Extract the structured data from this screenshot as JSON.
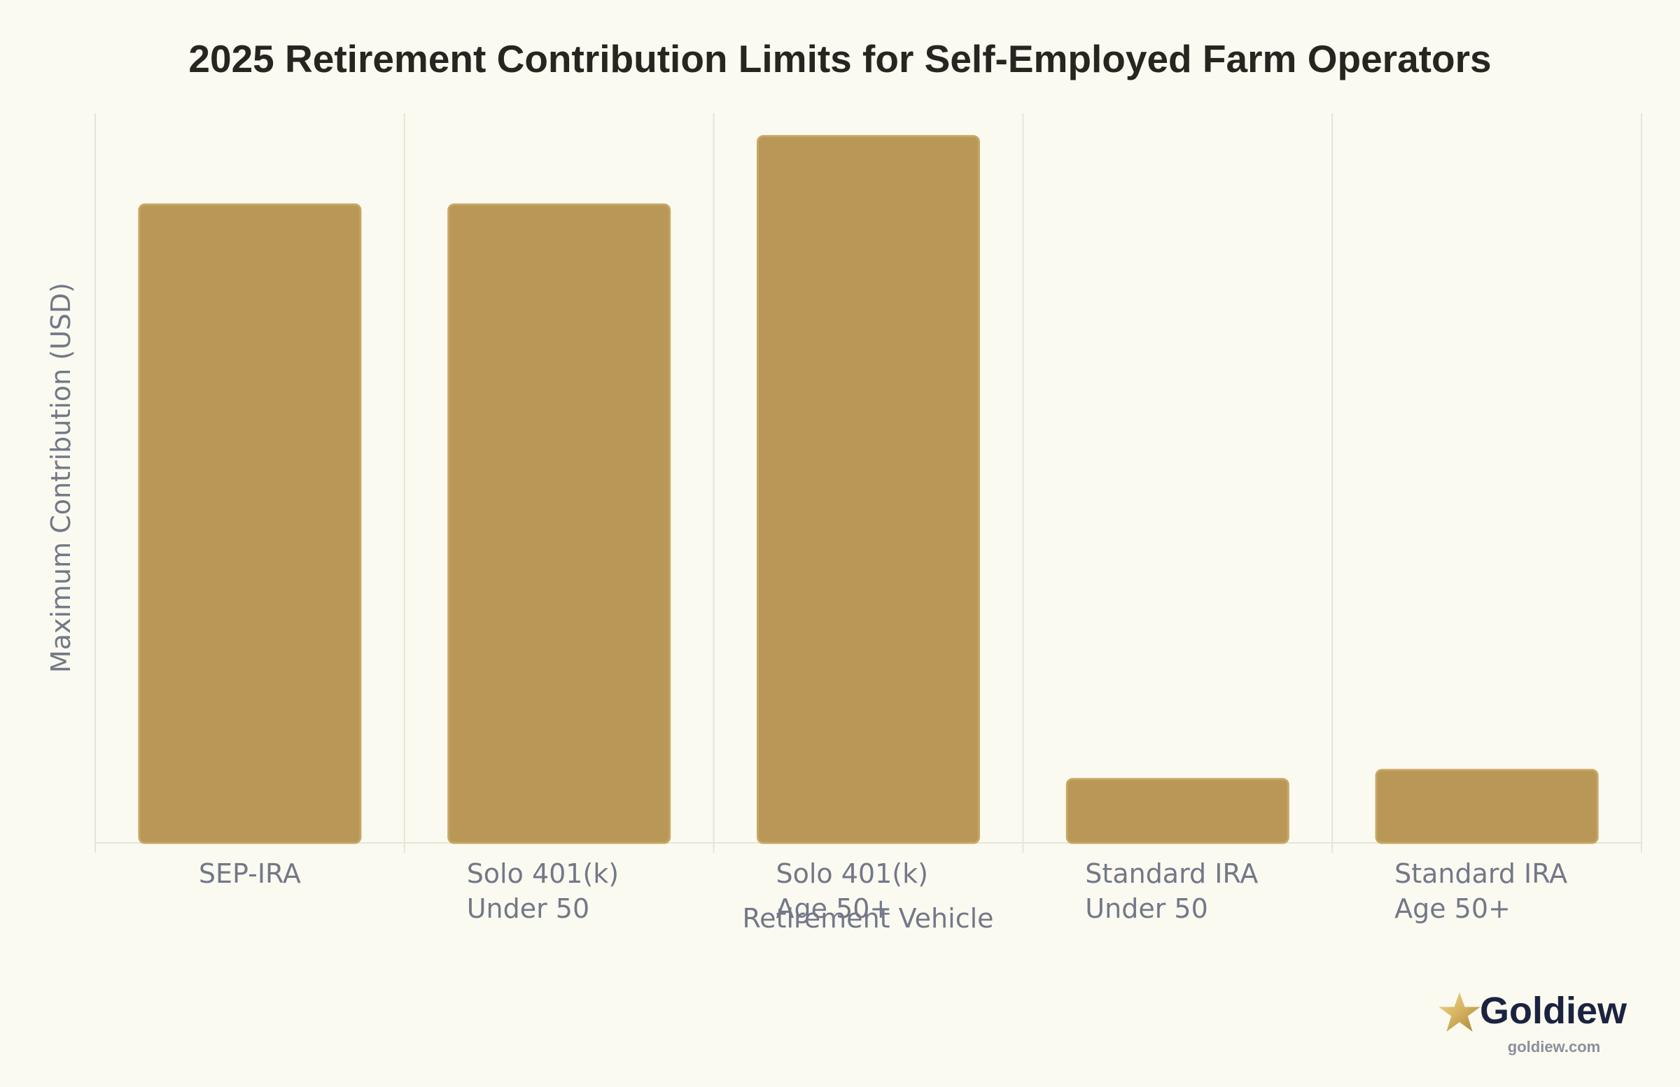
{
  "chart_data": {
    "type": "bar",
    "title": "2025 Retirement Contribution Limits for Self-Employed Farm Operators",
    "xlabel": "Retirement Vehicle",
    "ylabel": "Maximum Contribution (USD)",
    "categories": [
      [
        "SEP-IRA"
      ],
      [
        "Solo 401(k)",
        "Under 50"
      ],
      [
        "Solo 401(k)",
        "Age 50+"
      ],
      [
        "Standard IRA",
        "Under 50"
      ],
      [
        "Standard IRA",
        "Age 50+"
      ]
    ],
    "values": [
      70000,
      70000,
      77500,
      7000,
      8000
    ],
    "ylim": [
      0,
      80000
    ],
    "grid": "vertical",
    "colors": {
      "bar": "#b99756",
      "bar_stroke": "#c7a765",
      "grid": "#e6e4da",
      "text_muted": "#737888",
      "title": "#26251f",
      "background": "#fbfaf1"
    }
  },
  "brand": {
    "name": "Goldiew",
    "url": "goldiew.com",
    "icon": "star-icon",
    "colors": {
      "name": "#1b2340",
      "url": "#8a8f9c",
      "star": "#d4b25f"
    }
  }
}
